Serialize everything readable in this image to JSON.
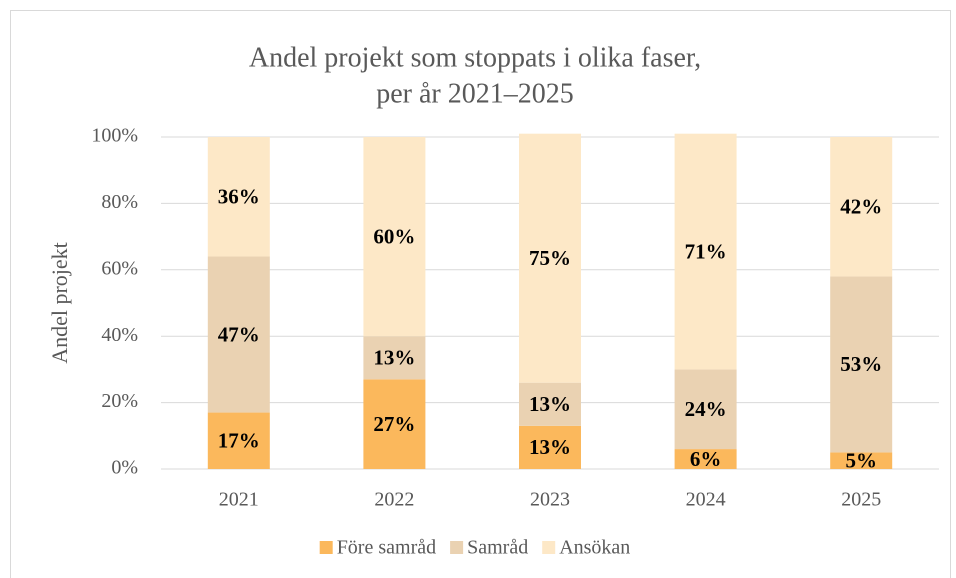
{
  "chart_data": {
    "type": "stacked_bar",
    "title": [
      "Andel projekt som stoppats i olika faser,",
      "per år 2021–2025"
    ],
    "y_label": "Andel projekt",
    "categories": [
      "2021",
      "2022",
      "2023",
      "2024",
      "2025"
    ],
    "series": [
      {
        "name": "Före samråd",
        "color": "#fbb85c",
        "values": [
          17,
          27,
          13,
          6,
          5
        ],
        "value_labels": [
          "17%",
          "27%",
          "13%",
          "6%",
          "5%"
        ]
      },
      {
        "name": "Samråd",
        "color": "#ead2b2",
        "values": [
          47,
          13,
          13,
          24,
          53
        ],
        "value_labels": [
          "47%",
          "13%",
          "13%",
          "24%",
          "53%"
        ]
      },
      {
        "name": "Ansökan",
        "color": "#fde8c7",
        "values": [
          36,
          60,
          75,
          71,
          42
        ],
        "value_labels": [
          "36%",
          "60%",
          "75%",
          "71%",
          "42%"
        ]
      }
    ],
    "ylim": [
      0,
      100
    ],
    "yticks": [
      {
        "value": 0,
        "label": "0%"
      },
      {
        "value": 20,
        "label": "20%"
      },
      {
        "value": 40,
        "label": "40%"
      },
      {
        "value": 60,
        "label": "60%"
      },
      {
        "value": 80,
        "label": "80%"
      },
      {
        "value": 100,
        "label": "100%"
      }
    ],
    "grid": true,
    "legend": "bottom"
  }
}
